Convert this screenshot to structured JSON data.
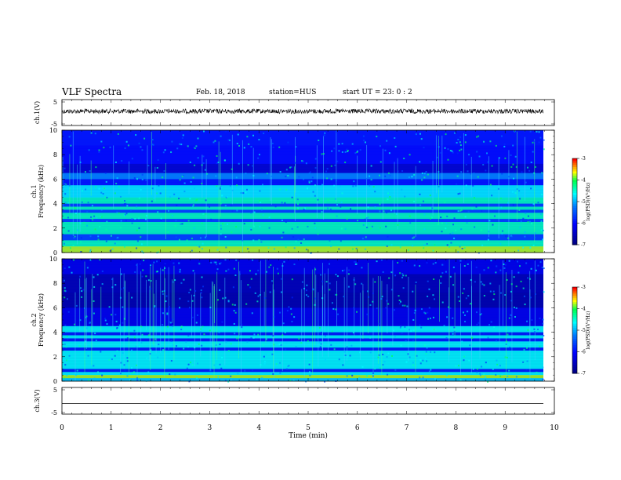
{
  "header": {
    "title": "VLF Spectra",
    "date": "Feb. 18, 2018",
    "station": "station=HUS",
    "start_ut": "start UT =   23: 0  : 2"
  },
  "chart_data": [
    {
      "type": "line",
      "ylabel": "ch.1(V)",
      "ylim": [
        -5,
        5
      ],
      "yticks": [
        "5",
        "-5"
      ],
      "xlim": [
        0,
        10
      ],
      "description_values": {
        "baseline": 0,
        "amplitude_approx": 0.6
      }
    },
    {
      "type": "heatmap",
      "ylabel": "ch.1\nFrequency (kHz)",
      "ylim": [
        0,
        10
      ],
      "yticks": [
        "0",
        "2",
        "4",
        "6",
        "8",
        "10"
      ],
      "xlim": [
        0,
        10
      ],
      "bands_khz": [
        0.3,
        0.8,
        1.7,
        2.3,
        3.0,
        3.6,
        4.3,
        4.8,
        5.3,
        6.2
      ],
      "colorbar": {
        "label": "log(PSD)(V²/Hz)",
        "range": [
          -7,
          -3
        ],
        "ticks": [
          "-3",
          "-4",
          "-5",
          "-6",
          "-7"
        ]
      }
    },
    {
      "type": "heatmap",
      "ylabel": "ch.2\nFrequency (kHz)",
      "ylim": [
        0,
        10
      ],
      "yticks": [
        "0",
        "2",
        "4",
        "6",
        "8",
        "10"
      ],
      "xlim": [
        0,
        10
      ],
      "bands_khz": [
        0.5,
        1.2,
        1.7,
        2.3,
        3.0,
        3.6,
        4.3
      ],
      "colorbar": {
        "label": "log(PSD)(V²/Hz)",
        "range": [
          -7,
          -3
        ],
        "ticks": [
          "-3",
          "-4",
          "-5",
          "-6",
          "-7"
        ]
      }
    },
    {
      "type": "line",
      "ylabel": "ch.3(V)",
      "ylim": [
        -5,
        5
      ],
      "yticks": [
        "5",
        "-5"
      ],
      "xlim": [
        0,
        10
      ],
      "xlabel": "Time  (min)",
      "xticks": [
        "0",
        "1",
        "2",
        "3",
        "4",
        "5",
        "6",
        "7",
        "8",
        "9",
        "10"
      ],
      "description_values": {
        "baseline": -2
      }
    }
  ],
  "colors": {
    "cmap": [
      "#00008b",
      "#0000ff",
      "#0080ff",
      "#00ffff",
      "#00ff00",
      "#ffff00",
      "#ff8000",
      "#ff0000",
      "#ffffff"
    ]
  }
}
